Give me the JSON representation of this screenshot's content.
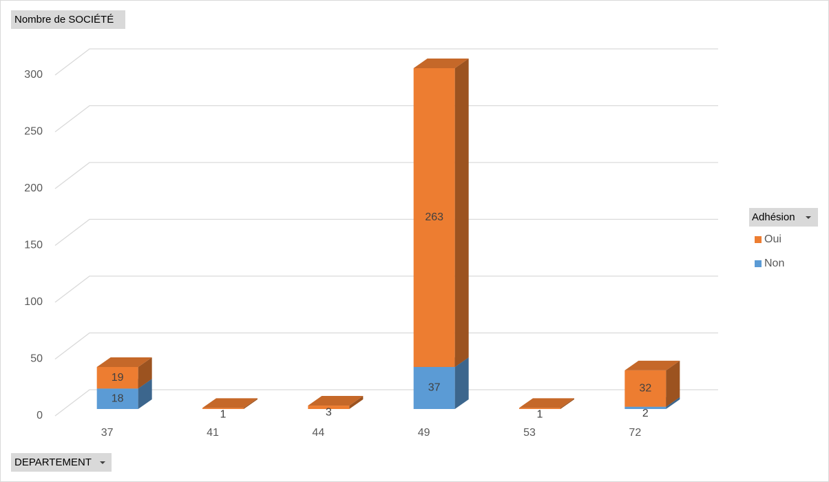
{
  "chart_data": {
    "type": "bar3d_stacked",
    "title": "Nombre de SOCIÉTÉ",
    "x_field": "DEPARTEMENT",
    "legend_title": "Adhésion",
    "categories": [
      "37",
      "41",
      "44",
      "49",
      "53",
      "72"
    ],
    "series": [
      {
        "name": "Non",
        "color": "#5b9bd5",
        "values": [
          18,
          null,
          null,
          37,
          null,
          2
        ]
      },
      {
        "name": "Oui",
        "color": "#ed7d31",
        "values": [
          19,
          1,
          3,
          263,
          1,
          32
        ]
      }
    ],
    "ylim": [
      0,
      300
    ],
    "yticks": [
      0,
      50,
      100,
      150,
      200,
      250,
      300
    ],
    "grid": true,
    "legend": "right"
  }
}
